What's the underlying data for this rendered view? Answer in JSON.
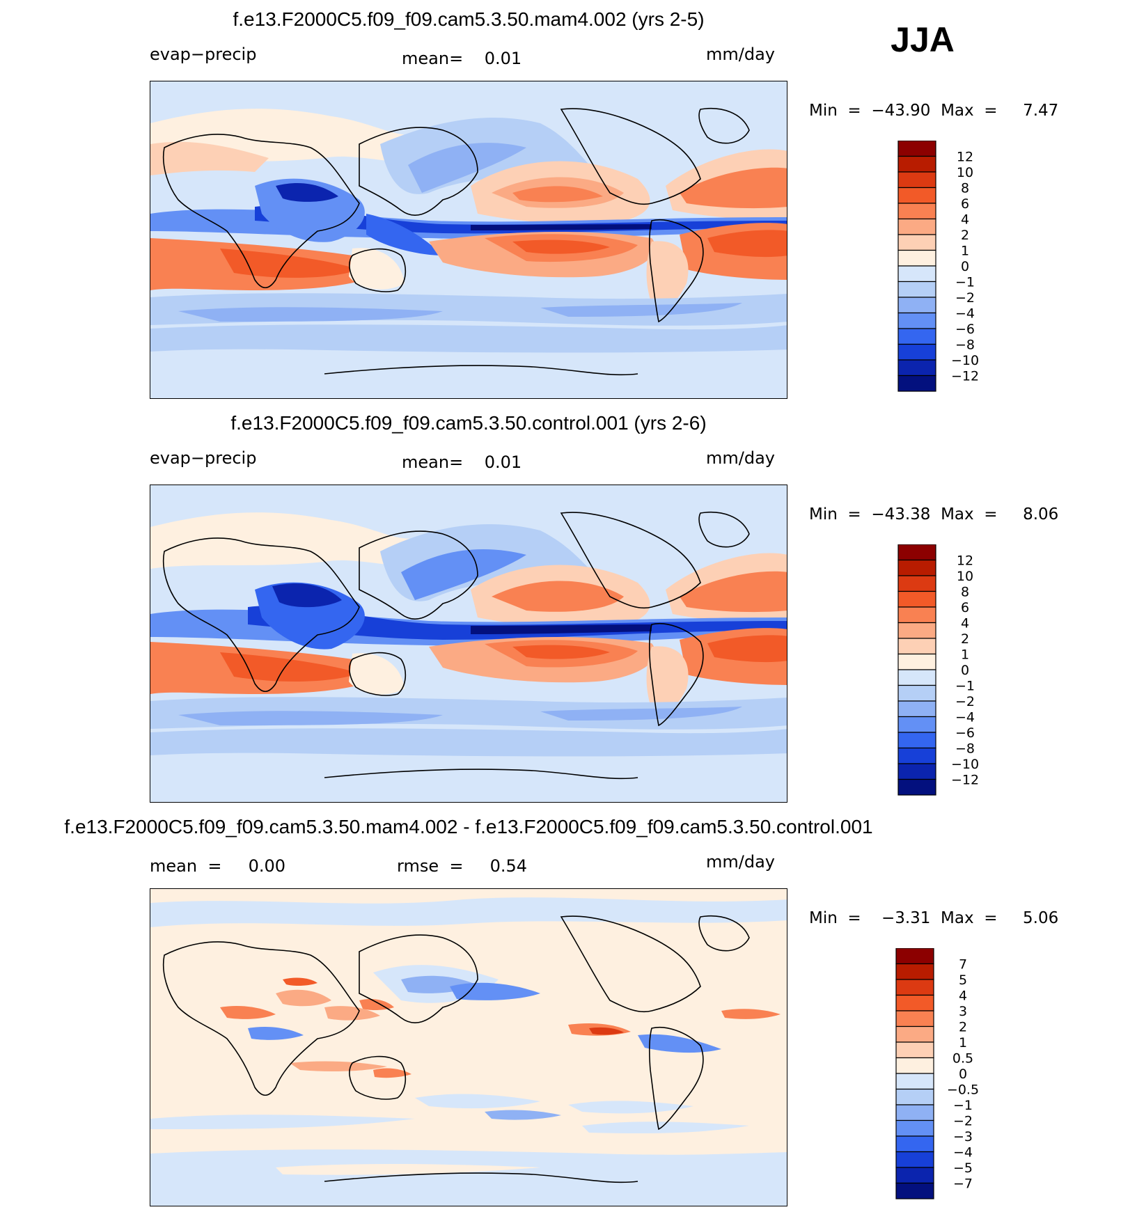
{
  "season": "JJA",
  "panels": [
    {
      "title": "f.e13.F2000C5.f09_f09.cam5.3.50.mam4.002 (yrs 2-5)",
      "left_label": "evap−precip",
      "center_label": "mean=    0.01",
      "units": "mm/day",
      "minmax": "Min  =  −43.90  Max  =     7.47",
      "colorbar_labels": [
        "12",
        "10",
        "8",
        "6",
        "4",
        "2",
        "1",
        "0",
        "−1",
        "−2",
        "−4",
        "−6",
        "−8",
        "−10",
        "−12"
      ]
    },
    {
      "title": "f.e13.F2000C5.f09_f09.cam5.3.50.control.001 (yrs 2-6)",
      "left_label": "evap−precip",
      "center_label": "mean=    0.01",
      "units": "mm/day",
      "minmax": "Min  =  −43.38  Max  =     8.06",
      "colorbar_labels": [
        "12",
        "10",
        "8",
        "6",
        "4",
        "2",
        "1",
        "0",
        "−1",
        "−2",
        "−4",
        "−6",
        "−8",
        "−10",
        "−12"
      ]
    },
    {
      "title": "f.e13.F2000C5.f09_f09.cam5.3.50.mam4.002 - f.e13.F2000C5.f09_f09.cam5.3.50.control.001",
      "left_label": "mean  =     0.00",
      "center_label": "rmse  =     0.54",
      "units": "mm/day",
      "minmax": "Min  =    −3.31  Max  =     5.06",
      "colorbar_labels": [
        "7",
        "5",
        "4",
        "3",
        "2",
        "1",
        "0.5",
        "0",
        "−0.5",
        "−1",
        "−2",
        "−3",
        "−4",
        "−5",
        "−7"
      ]
    }
  ],
  "colors": [
    "#8c0000",
    "#b81c00",
    "#dc3a12",
    "#f25a28",
    "#f98152",
    "#fbaa84",
    "#fdd0b5",
    "#fef0e0",
    "#d6e6fa",
    "#b5cff6",
    "#8fb1f4",
    "#6390f5",
    "#3466f0",
    "#1740d8",
    "#0b24ae",
    "#03107e"
  ],
  "chart_data": [
    {
      "type": "heatmap",
      "title": "f.e13.F2000C5.f09_f09.cam5.3.50.mam4.002 (yrs 2-5)",
      "variable": "evap−precip",
      "units": "mm/day",
      "mean": 0.01,
      "min": -43.9,
      "max": 7.47,
      "contour_levels": [
        -12,
        -10,
        -8,
        -6,
        -4,
        -2,
        -1,
        0,
        1,
        2,
        4,
        6,
        8,
        10,
        12
      ]
    },
    {
      "type": "heatmap",
      "title": "f.e13.F2000C5.f09_f09.cam5.3.50.control.001 (yrs 2-6)",
      "variable": "evap−precip",
      "units": "mm/day",
      "mean": 0.01,
      "min": -43.38,
      "max": 8.06,
      "contour_levels": [
        -12,
        -10,
        -8,
        -6,
        -4,
        -2,
        -1,
        0,
        1,
        2,
        4,
        6,
        8,
        10,
        12
      ]
    },
    {
      "type": "heatmap",
      "title": "f.e13.F2000C5.f09_f09.cam5.3.50.mam4.002 - f.e13.F2000C5.f09_f09.cam5.3.50.control.001",
      "units": "mm/day",
      "mean": 0.0,
      "rmse": 0.54,
      "min": -3.31,
      "max": 5.06,
      "contour_levels": [
        -7,
        -5,
        -4,
        -3,
        -2,
        -1,
        -0.5,
        0,
        0.5,
        1,
        2,
        3,
        4,
        5,
        7
      ]
    }
  ]
}
